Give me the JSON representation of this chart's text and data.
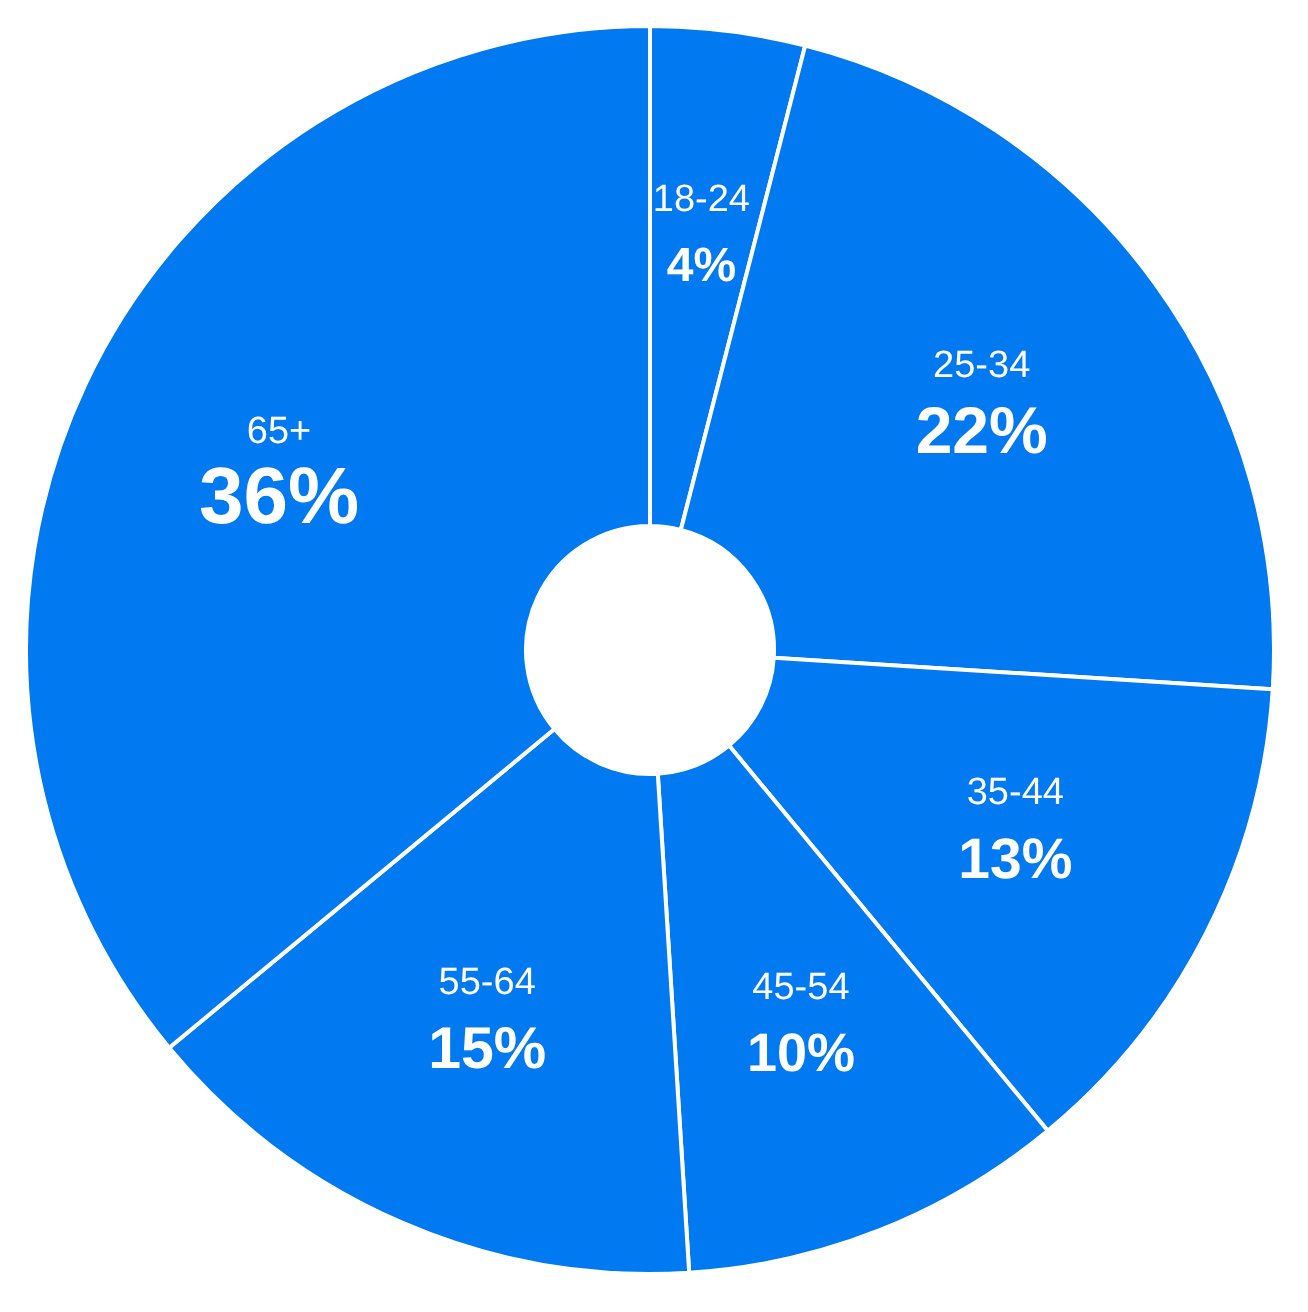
{
  "chart_data": {
    "type": "donut",
    "categories": [
      "18-24",
      "25-34",
      "35-44",
      "45-54",
      "55-64",
      "65+"
    ],
    "values": [
      4,
      22,
      13,
      10,
      15,
      36
    ],
    "colors": [
      "#0179f1",
      "#0179f1",
      "#0179f1",
      "#0179f1",
      "#0179f1",
      "#0179f1"
    ],
    "value_labels": [
      "4%",
      "22%",
      "13%",
      "10%",
      "15%",
      "36%"
    ],
    "legend": false
  }
}
